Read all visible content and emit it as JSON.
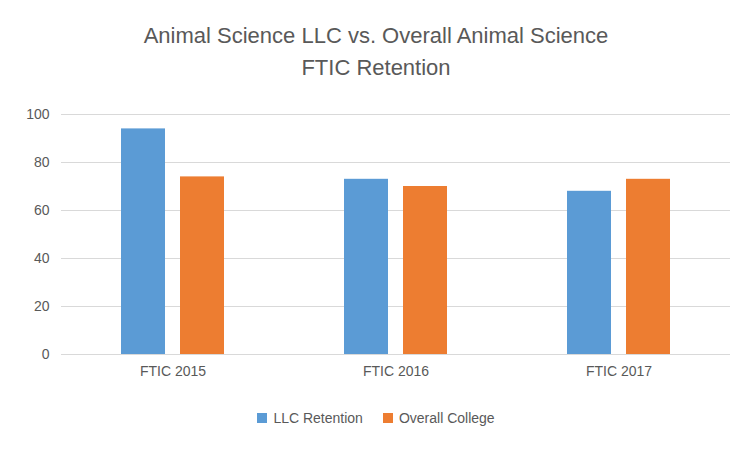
{
  "chart_data": {
    "type": "bar",
    "title": "Animal Science LLC vs. Overall Animal Science\nFTIC Retention",
    "categories": [
      "FTIC 2015",
      "FTIC 2016",
      "FTIC 2017"
    ],
    "series": [
      {
        "name": "LLC Retention",
        "color": "#5b9bd5",
        "values": [
          94,
          73,
          68
        ]
      },
      {
        "name": "Overall College",
        "color": "#ed7d31",
        "values": [
          74,
          70,
          73
        ]
      }
    ],
    "ylim": [
      0,
      100
    ],
    "yticks": [
      0,
      20,
      40,
      60,
      80,
      100
    ],
    "grid": true,
    "legend": "bottom"
  }
}
